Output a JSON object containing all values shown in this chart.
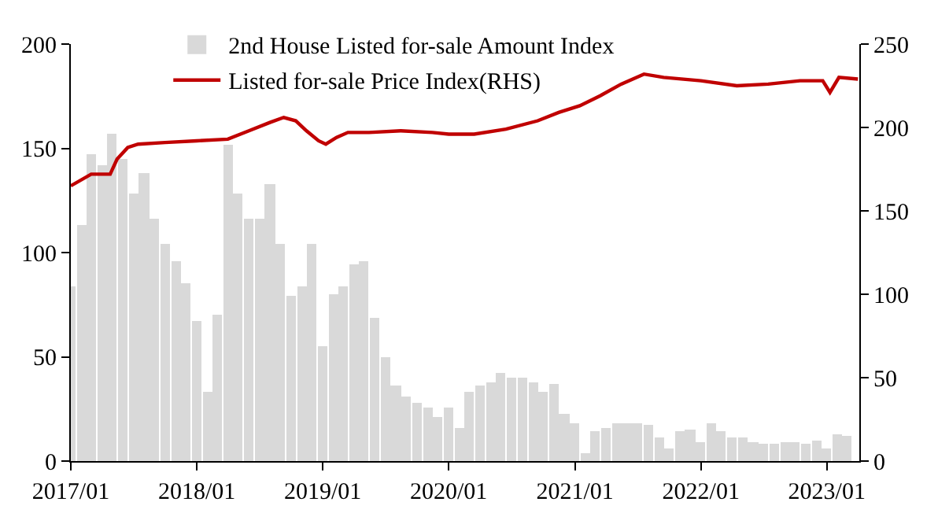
{
  "chart_data": {
    "type": "bar",
    "legend": "top",
    "xlim": [
      "2017-01-01",
      "2023-04-05"
    ],
    "xticks": [
      {
        "value": "2017-01",
        "label": "2017/01"
      },
      {
        "value": "2018-01",
        "label": "2018/01"
      },
      {
        "value": "2019-01",
        "label": "2019/01"
      },
      {
        "value": "2020-01",
        "label": "2020/01"
      },
      {
        "value": "2021-01",
        "label": "2021/01"
      },
      {
        "value": "2022-01",
        "label": "2022/01"
      },
      {
        "value": "2023-01",
        "label": "2023/01"
      }
    ],
    "ylim": [
      0,
      200
    ],
    "yticks": [
      0,
      50,
      100,
      150,
      200
    ],
    "y2lim": [
      0,
      250
    ],
    "y2ticks": [
      0,
      50,
      100,
      150,
      200,
      250
    ],
    "series": [
      {
        "name": "2nd House Listed for-sale Amount Index",
        "color": "#d9d9d9",
        "x": [
          "2017-01",
          "2017-02",
          "2017-03",
          "2017-04",
          "2017-05",
          "2017-06",
          "2017-07",
          "2017-08",
          "2017-09",
          "2017-10",
          "2017-11",
          "2017-12",
          "2018-01",
          "2018-02",
          "2018-03",
          "2018-04",
          "2018-05",
          "2018-06",
          "2018-07",
          "2018-08",
          "2018-09",
          "2018-10",
          "2018-11",
          "2018-12",
          "2019-01",
          "2019-02",
          "2019-03",
          "2019-04",
          "2019-05",
          "2019-06",
          "2019-07",
          "2019-08",
          "2019-09",
          "2019-10",
          "2019-11",
          "2019-12",
          "2020-01",
          "2020-02",
          "2020-03",
          "2020-04",
          "2020-05",
          "2020-06",
          "2020-07",
          "2020-08",
          "2020-09",
          "2020-10",
          "2020-11",
          "2020-12",
          "2021-01",
          "2021-02",
          "2021-03",
          "2021-04",
          "2021-05",
          "2021-06",
          "2021-07",
          "2021-08",
          "2021-09",
          "2021-10",
          "2021-11",
          "2021-12",
          "2022-01",
          "2022-02",
          "2022-03",
          "2022-04",
          "2022-05",
          "2022-06",
          "2022-07",
          "2022-08",
          "2022-09",
          "2022-10",
          "2022-11",
          "2022-12",
          "2023-01",
          "2023-02",
          "2023-03"
        ],
        "values": [
          84,
          113,
          147,
          142,
          157,
          145,
          128,
          138,
          116,
          104,
          96,
          85,
          67,
          33,
          70,
          152,
          128,
          116,
          116,
          133,
          104,
          79,
          84,
          104,
          55,
          80,
          84,
          94,
          96,
          69,
          50,
          36,
          31,
          28,
          26,
          21,
          26,
          16,
          33,
          36,
          38,
          42,
          40,
          40,
          38,
          33,
          37,
          23,
          18,
          4,
          14,
          16,
          18,
          18,
          18,
          17,
          11,
          6,
          14,
          15,
          9,
          18,
          14,
          11,
          11,
          9,
          8,
          8,
          9,
          9,
          8,
          10,
          6,
          13,
          12
        ]
      },
      {
        "name": "Listed for-sale Price Index(RHS)",
        "type": "line",
        "axis": "y2",
        "color": "#c00000",
        "x": [
          "2017-01-01",
          "2017-03-01",
          "2017-04-25",
          "2017-05-15",
          "2017-06-15",
          "2017-07-15",
          "2017-10-01",
          "2018-01-01",
          "2018-04-01",
          "2018-06-01",
          "2018-08-01",
          "2018-09-10",
          "2018-10-15",
          "2018-11-15",
          "2018-12-20",
          "2019-01-10",
          "2019-02-10",
          "2019-03-15",
          "2019-05-15",
          "2019-08-15",
          "2019-11-15",
          "2020-01-01",
          "2020-03-15",
          "2020-06-15",
          "2020-09-15",
          "2020-11-15",
          "2021-01-15",
          "2021-03-15",
          "2021-05-15",
          "2021-07-20",
          "2021-09-15",
          "2022-01-01",
          "2022-04-15",
          "2022-07-15",
          "2022-10-15",
          "2022-12-20",
          "2023-01-10",
          "2023-02-05",
          "2023-04-01"
        ],
        "values": [
          165,
          172,
          172,
          181,
          188,
          190,
          191,
          192,
          193,
          198,
          203,
          206,
          204,
          198,
          192,
          190,
          194,
          197,
          197,
          198,
          197,
          196,
          196,
          199,
          204,
          209,
          213,
          219,
          226,
          232,
          230,
          228,
          225,
          226,
          228,
          228,
          221,
          230,
          229
        ]
      }
    ]
  }
}
